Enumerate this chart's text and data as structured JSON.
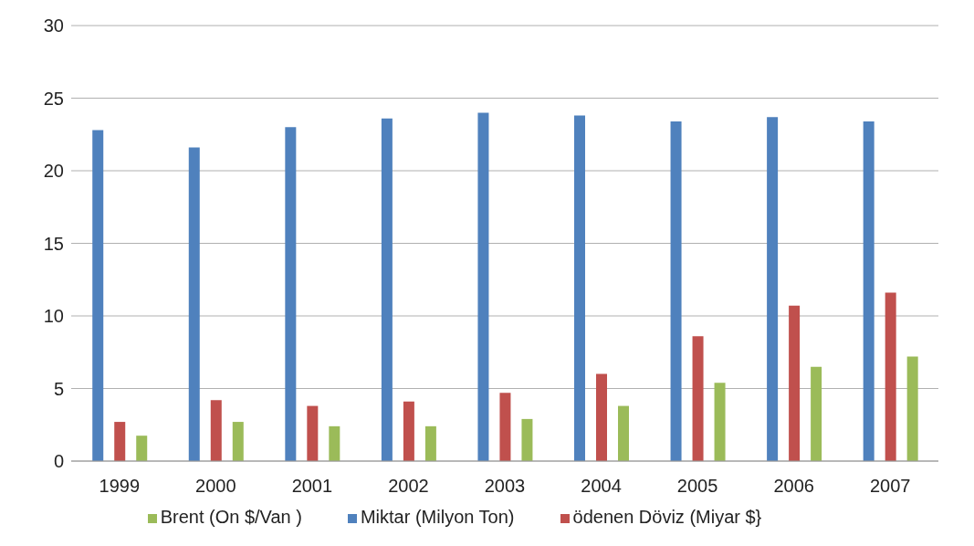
{
  "chart_data": {
    "type": "bar",
    "categories": [
      "1999",
      "2000",
      "2001",
      "2002",
      "2003",
      "2004",
      "2005",
      "2006",
      "2007"
    ],
    "series": [
      {
        "name": "Miktar (Milyon Ton)",
        "color": "#4f81bd",
        "values": [
          22.8,
          21.6,
          23.0,
          23.6,
          24.0,
          23.8,
          23.4,
          23.7,
          23.4
        ]
      },
      {
        "name": "ödenen Döviz (Miyar $}",
        "color": "#c0504d",
        "values": [
          2.7,
          4.2,
          3.8,
          4.1,
          4.7,
          6.0,
          8.6,
          10.7,
          11.6
        ]
      },
      {
        "name": "Brent (On $/Van )",
        "color": "#9bbb59",
        "values": [
          1.75,
          2.7,
          2.4,
          2.4,
          2.9,
          3.8,
          5.4,
          6.5,
          7.2
        ]
      }
    ],
    "ylim": [
      0,
      30
    ],
    "yticks": [
      0,
      5,
      10,
      15,
      20,
      25,
      30
    ],
    "grid": "y",
    "legend": "bottom"
  }
}
